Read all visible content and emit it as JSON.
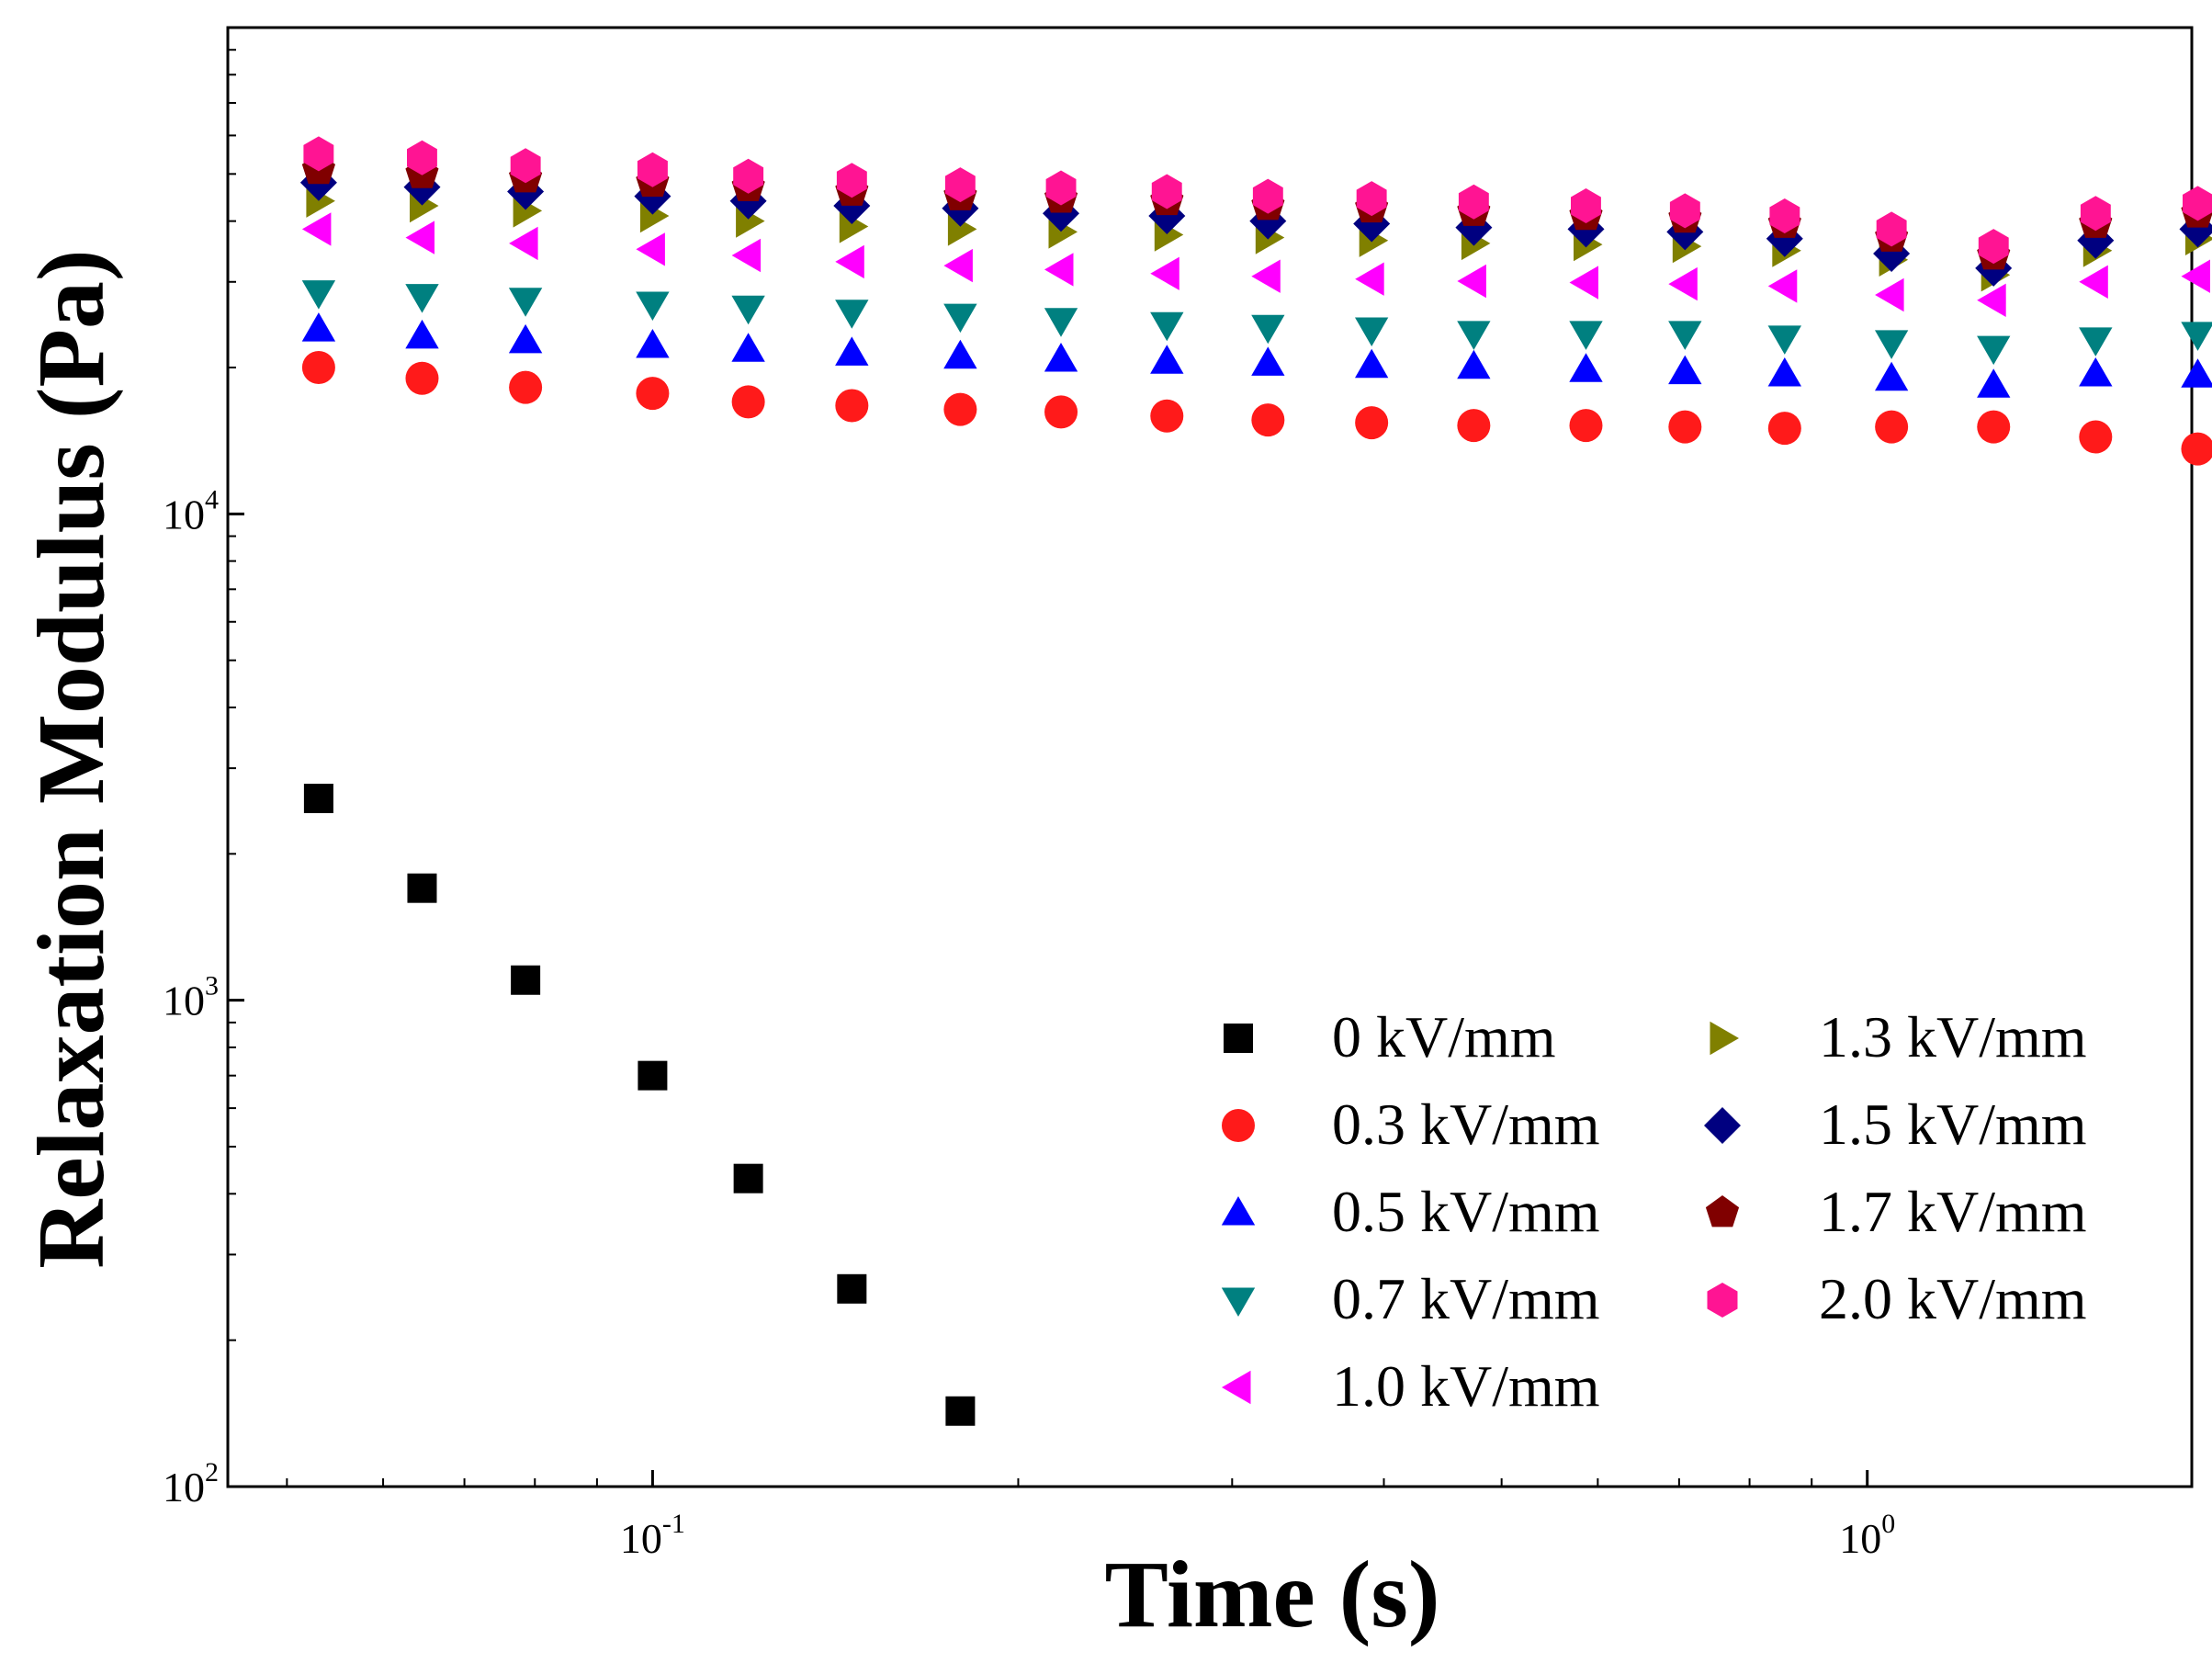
{
  "chart_data": {
    "type": "scatter",
    "title": "",
    "xlabel": "Time (s)",
    "ylabel": "Relaxation Modulus (Pa)",
    "xscale": "log",
    "yscale": "log",
    "xlim": [
      0.0447,
      1.85
    ],
    "ylim": [
      100,
      100000
    ],
    "xticks": [
      {
        "value": 0.1,
        "base": "10",
        "exp": "-1"
      },
      {
        "value": 1,
        "base": "10",
        "exp": "0"
      }
    ],
    "yticks": [
      {
        "value": 100,
        "base": "10",
        "exp": "2"
      },
      {
        "value": 1000,
        "base": "10",
        "exp": "3"
      },
      {
        "value": 10000,
        "base": "10",
        "exp": "4"
      }
    ],
    "legend_position": "lower-right",
    "x": [
      0.0531,
      0.0646,
      0.0786,
      0.1,
      0.1199,
      0.1459,
      0.1792,
      0.2169,
      0.2651,
      0.3211,
      0.3908,
      0.4743,
      0.5867,
      0.7079,
      0.8551,
      1.0471,
      1.2706,
      1.5417,
      1.8709
    ],
    "series": [
      {
        "name": "0 kV/mm",
        "marker": "square",
        "color": "#000000",
        "values": [
          2600,
          1700,
          1100,
          700,
          430,
          255,
          143,
          null,
          null,
          null,
          null,
          null,
          null,
          null,
          null,
          null,
          null,
          null,
          null
        ]
      },
      {
        "name": "0.3 kV/mm",
        "marker": "circle",
        "color": "#ff1a1a",
        "values": [
          20000,
          19000,
          18200,
          17700,
          17000,
          16700,
          16400,
          16200,
          15900,
          15600,
          15400,
          15200,
          15200,
          15100,
          15000,
          15100,
          15100,
          14400,
          13600
        ]
      },
      {
        "name": "0.5 kV/mm",
        "marker": "triangle-up",
        "color": "#0000ff",
        "values": [
          24000,
          23200,
          22700,
          22200,
          21800,
          21400,
          21100,
          20800,
          20600,
          20400,
          20200,
          20100,
          19800,
          19600,
          19400,
          19000,
          18400,
          19400,
          19300
        ]
      },
      {
        "name": "0.7 kV/mm",
        "marker": "triangle-down",
        "color": "#008080",
        "values": [
          28500,
          28000,
          27500,
          27000,
          26500,
          26000,
          25500,
          25000,
          24500,
          24200,
          23900,
          23500,
          23500,
          23500,
          23000,
          22500,
          21900,
          22800,
          23400
        ]
      },
      {
        "name": "1.0 kV/mm",
        "marker": "triangle-left",
        "color": "#ff00ff",
        "values": [
          38500,
          37000,
          36000,
          35000,
          34000,
          33000,
          32400,
          31800,
          31200,
          30800,
          30400,
          30100,
          29900,
          29700,
          29400,
          28200,
          27500,
          30000,
          30800
        ]
      },
      {
        "name": "1.3 kV/mm",
        "marker": "triangle-right",
        "color": "#808000",
        "values": [
          44000,
          43000,
          42000,
          41000,
          40000,
          39000,
          38500,
          38000,
          37500,
          37000,
          36500,
          36000,
          35800,
          35500,
          34800,
          33300,
          31000,
          34800,
          36800
        ]
      },
      {
        "name": "1.5 kV/mm",
        "marker": "diamond",
        "color": "#000080",
        "values": [
          48000,
          47000,
          46000,
          45000,
          44000,
          43000,
          42500,
          41500,
          41000,
          40000,
          39500,
          38800,
          38500,
          38000,
          36800,
          34300,
          32000,
          36500,
          38500
        ]
      },
      {
        "name": "1.7 kV/mm",
        "marker": "pentagon",
        "color": "#800000",
        "values": [
          51000,
          50000,
          49000,
          48000,
          47000,
          46000,
          45000,
          44500,
          44000,
          43000,
          42500,
          41800,
          41000,
          40500,
          39500,
          37000,
          34000,
          39500,
          41500
        ]
      },
      {
        "name": "2.0 kV/mm",
        "marker": "hexagon",
        "color": "#ff1493",
        "values": [
          55000,
          54000,
          52000,
          51000,
          49500,
          48500,
          47500,
          46800,
          46000,
          45000,
          44500,
          43800,
          43000,
          42000,
          41000,
          38500,
          35500,
          41500,
          43500
        ]
      }
    ]
  }
}
